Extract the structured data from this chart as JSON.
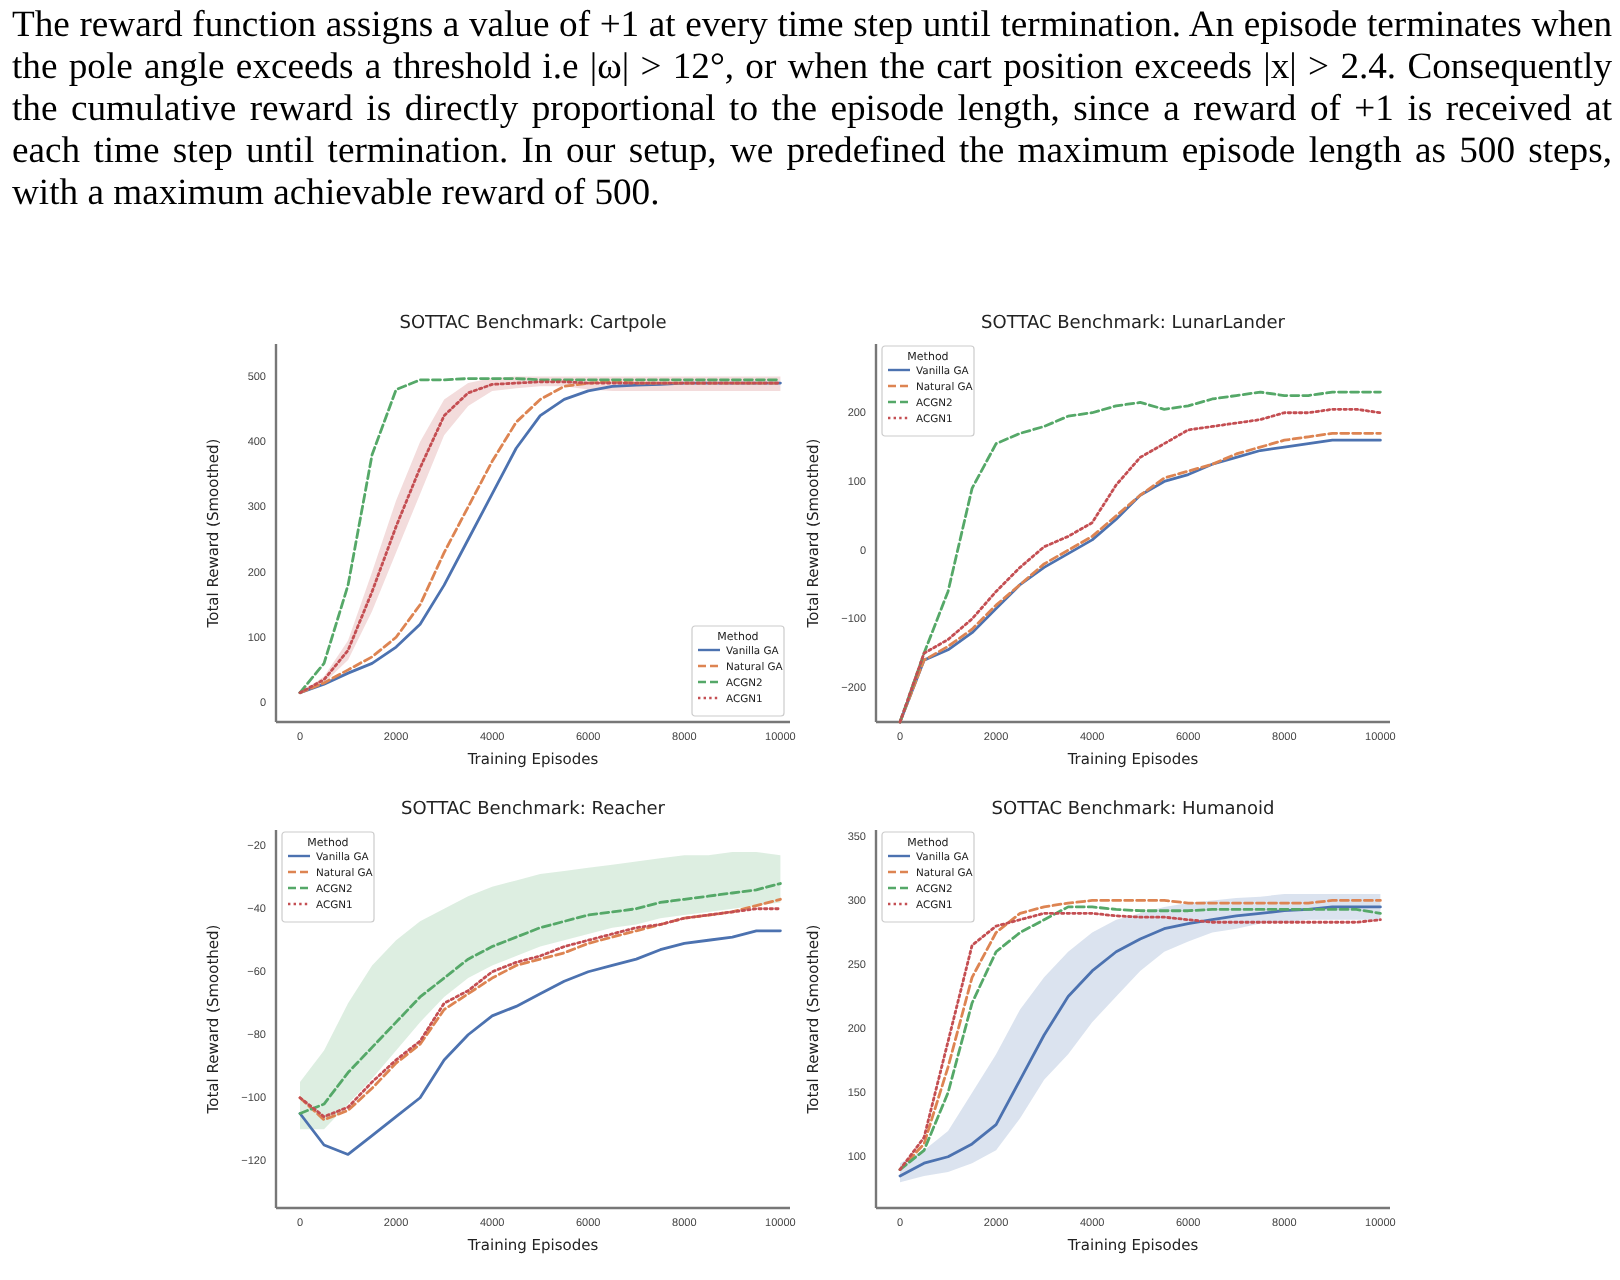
{
  "chart_data": [
    {
      "type": "line",
      "title": "SOTTAC Benchmark: Cartpole",
      "xlabel": "Training Episodes",
      "ylabel": "Total Reward (Smoothed)",
      "legend_title": "Method",
      "legend": "bottom right",
      "annotations": [
        "The reward function assigns a value of +1 at every time step until termination. An episode terminates when the pole angle exceeds a threshold i.e |ω| > 12°, or when the cart position exceeds |x| > 2.4. Consequently the cumulative reward is directly proportional to the episode length, since a reward of +1 is received at each time step until termination. In our setup, we predefined the maximum episode length as 500 steps, with a maximum achievable reward of 500."
      ],
      "x": [
        0,
        500,
        1000,
        1500,
        2000,
        2500,
        3000,
        3500,
        4000,
        4500,
        5000,
        5500,
        6000,
        6500,
        7000,
        7500,
        8000,
        8500,
        9000,
        9500,
        10000
      ],
      "xlim": [
        -500,
        10200
      ],
      "xticks": [
        0,
        2000,
        4000,
        6000,
        8000,
        10000
      ],
      "ylim": [
        -30,
        550
      ],
      "yticks": [
        0,
        100,
        200,
        300,
        400,
        500
      ],
      "series": [
        {
          "name": "Vanilla GA",
          "color": "#4c72b0",
          "line_style": "solid",
          "values": [
            15,
            28,
            45,
            60,
            85,
            120,
            180,
            250,
            320,
            390,
            440,
            465,
            478,
            485,
            487,
            488,
            490,
            490,
            490,
            490,
            490
          ]
        },
        {
          "name": "Natural GA",
          "color": "#dd8452",
          "line_style": "dashed",
          "values": [
            15,
            30,
            50,
            70,
            100,
            150,
            230,
            300,
            370,
            430,
            465,
            485,
            490,
            492,
            490,
            490,
            490,
            490,
            490,
            490,
            490
          ]
        },
        {
          "name": "ACGN2",
          "color": "#55a868",
          "line_style": "dashed",
          "values": [
            15,
            60,
            180,
            380,
            480,
            495,
            495,
            497,
            497,
            497,
            495,
            495,
            495,
            495,
            495,
            495,
            495,
            495,
            495,
            495,
            495
          ]
        },
        {
          "name": "ACGN1",
          "color": "#c44e52",
          "line_style": "dotted",
          "values": [
            15,
            35,
            80,
            170,
            270,
            360,
            440,
            475,
            488,
            490,
            492,
            492,
            490,
            490,
            490,
            490,
            490,
            490,
            490,
            490,
            490
          ],
          "lower": [
            15,
            30,
            65,
            140,
            230,
            320,
            410,
            455,
            478,
            482,
            485,
            485,
            480,
            478,
            478,
            478,
            478,
            478,
            478,
            478,
            478
          ],
          "upper": [
            15,
            40,
            95,
            200,
            310,
            400,
            465,
            490,
            498,
            500,
            500,
            500,
            500,
            500,
            500,
            500,
            500,
            500,
            500,
            500,
            500
          ]
        }
      ]
    },
    {
      "type": "line",
      "title": "SOTTAC Benchmark: LunarLander",
      "xlabel": "Training Episodes",
      "ylabel": "Total Reward (Smoothed)",
      "legend_title": "Method",
      "legend": "top left",
      "x": [
        0,
        500,
        1000,
        1500,
        2000,
        2500,
        3000,
        3500,
        4000,
        4500,
        5000,
        5500,
        6000,
        6500,
        7000,
        7500,
        8000,
        8500,
        9000,
        9500,
        10000
      ],
      "xlim": [
        -500,
        10200
      ],
      "xticks": [
        0,
        2000,
        4000,
        6000,
        8000,
        10000
      ],
      "ylim": [
        -250,
        300
      ],
      "yticks": [
        {
          "value": -200,
          "label": "−200"
        },
        {
          "value": -100,
          "label": "−100"
        },
        0,
        100,
        200
      ],
      "series": [
        {
          "name": "Vanilla GA",
          "color": "#4c72b0",
          "line_style": "solid",
          "values": [
            -250,
            -160,
            -145,
            -120,
            -85,
            -50,
            -25,
            -5,
            15,
            45,
            80,
            100,
            110,
            125,
            135,
            145,
            150,
            155,
            160,
            160,
            160
          ]
        },
        {
          "name": "Natural GA",
          "color": "#dd8452",
          "line_style": "dashed",
          "values": [
            -250,
            -160,
            -140,
            -115,
            -80,
            -50,
            -20,
            0,
            20,
            50,
            80,
            105,
            115,
            125,
            140,
            150,
            160,
            165,
            170,
            170,
            170
          ]
        },
        {
          "name": "ACGN2",
          "color": "#55a868",
          "line_style": "dashed",
          "values": [
            -250,
            -150,
            -60,
            90,
            155,
            170,
            180,
            195,
            200,
            210,
            215,
            205,
            210,
            220,
            225,
            230,
            225,
            225,
            230,
            230,
            230
          ]
        },
        {
          "name": "ACGN1",
          "color": "#c44e52",
          "line_style": "dotted",
          "values": [
            -250,
            -150,
            -130,
            -100,
            -60,
            -25,
            5,
            20,
            40,
            95,
            135,
            155,
            175,
            180,
            185,
            190,
            200,
            200,
            205,
            205,
            200
          ]
        }
      ]
    },
    {
      "type": "line",
      "title": "SOTTAC Benchmark: Reacher",
      "xlabel": "Training Episodes",
      "ylabel": "Total Reward (Smoothed)",
      "legend_title": "Method",
      "legend": "top left",
      "x": [
        0,
        500,
        1000,
        1500,
        2000,
        2500,
        3000,
        3500,
        4000,
        4500,
        5000,
        5500,
        6000,
        6500,
        7000,
        7500,
        8000,
        8500,
        9000,
        9500,
        10000
      ],
      "xlim": [
        -500,
        10200
      ],
      "xticks": [
        0,
        2000,
        4000,
        6000,
        8000,
        10000
      ],
      "ylim": [
        -135,
        -15
      ],
      "yticks": [
        {
          "value": -120,
          "label": "−120"
        },
        {
          "value": -100,
          "label": "−100"
        },
        {
          "value": -80,
          "label": "−80"
        },
        {
          "value": -60,
          "label": "−60"
        },
        {
          "value": -40,
          "label": "−40"
        },
        {
          "value": -20,
          "label": "−20"
        }
      ],
      "series": [
        {
          "name": "Vanilla GA",
          "color": "#4c72b0",
          "line_style": "solid",
          "values": [
            -105,
            -115,
            -118,
            -112,
            -106,
            -100,
            -88,
            -80,
            -74,
            -71,
            -67,
            -63,
            -60,
            -58,
            -56,
            -53,
            -51,
            -50,
            -49,
            -47,
            -47
          ]
        },
        {
          "name": "Natural GA",
          "color": "#dd8452",
          "line_style": "dashed",
          "values": [
            -100,
            -107,
            -104,
            -97,
            -89,
            -83,
            -72,
            -67,
            -62,
            -58,
            -56,
            -54,
            -51,
            -49,
            -47,
            -45,
            -43,
            -42,
            -41,
            -39,
            -37
          ]
        },
        {
          "name": "ACGN2",
          "color": "#55a868",
          "line_style": "dashed",
          "values": [
            -105,
            -102,
            -92,
            -84,
            -76,
            -68,
            -62,
            -56,
            -52,
            -49,
            -46,
            -44,
            -42,
            -41,
            -40,
            -38,
            -37,
            -36,
            -35,
            -34,
            -32
          ],
          "lower": [
            -110,
            -110,
            -102,
            -94,
            -85,
            -76,
            -68,
            -62,
            -58,
            -55,
            -52,
            -50,
            -48,
            -46,
            -45,
            -43,
            -42,
            -41,
            -40,
            -39,
            -38
          ],
          "upper": [
            -95,
            -85,
            -70,
            -58,
            -50,
            -44,
            -40,
            -36,
            -33,
            -31,
            -29,
            -28,
            -27,
            -26,
            -25,
            -24,
            -23,
            -23,
            -22,
            -22,
            -23
          ]
        },
        {
          "name": "ACGN1",
          "color": "#c44e52",
          "line_style": "dotted",
          "values": [
            -100,
            -106,
            -103,
            -95,
            -88,
            -82,
            -70,
            -66,
            -60,
            -57,
            -55,
            -52,
            -50,
            -48,
            -46,
            -45,
            -43,
            -42,
            -41,
            -40,
            -40
          ]
        }
      ]
    },
    {
      "type": "line",
      "title": "SOTTAC Benchmark: Humanoid",
      "xlabel": "Training Episodes",
      "ylabel": "Total Reward (Smoothed)",
      "legend_title": "Method",
      "legend": "top left",
      "x": [
        0,
        500,
        1000,
        1500,
        2000,
        2500,
        3000,
        3500,
        4000,
        4500,
        5000,
        5500,
        6000,
        6500,
        7000,
        7500,
        8000,
        8500,
        9000,
        9500,
        10000
      ],
      "xlim": [
        -500,
        10200
      ],
      "xticks": [
        0,
        2000,
        4000,
        6000,
        8000,
        10000
      ],
      "ylim": [
        60,
        355
      ],
      "yticks": [
        100,
        150,
        200,
        250,
        300,
        350
      ],
      "series": [
        {
          "name": "Vanilla GA",
          "color": "#4c72b0",
          "line_style": "solid",
          "values": [
            85,
            95,
            100,
            110,
            125,
            160,
            195,
            225,
            245,
            260,
            270,
            278,
            282,
            285,
            288,
            290,
            292,
            293,
            295,
            295,
            295
          ],
          "lower": [
            80,
            85,
            88,
            95,
            105,
            130,
            160,
            180,
            205,
            225,
            245,
            260,
            268,
            275,
            278,
            282,
            283,
            285,
            285,
            285,
            285
          ],
          "upper": [
            95,
            105,
            120,
            150,
            180,
            215,
            240,
            260,
            275,
            285,
            290,
            295,
            298,
            300,
            302,
            303,
            305,
            305,
            305,
            305,
            305
          ]
        },
        {
          "name": "Natural GA",
          "color": "#dd8452",
          "line_style": "dashed",
          "values": [
            90,
            110,
            170,
            240,
            275,
            290,
            295,
            298,
            300,
            300,
            300,
            300,
            298,
            298,
            298,
            298,
            298,
            298,
            300,
            300,
            300
          ]
        },
        {
          "name": "ACGN2",
          "color": "#55a868",
          "line_style": "dashed",
          "values": [
            90,
            105,
            150,
            220,
            260,
            275,
            285,
            295,
            295,
            293,
            292,
            292,
            292,
            293,
            293,
            293,
            293,
            293,
            293,
            293,
            290
          ]
        },
        {
          "name": "ACGN1",
          "color": "#c44e52",
          "line_style": "dotted",
          "values": [
            90,
            115,
            190,
            265,
            280,
            285,
            290,
            290,
            290,
            288,
            287,
            287,
            285,
            283,
            283,
            283,
            283,
            283,
            283,
            283,
            285
          ]
        }
      ]
    }
  ]
}
